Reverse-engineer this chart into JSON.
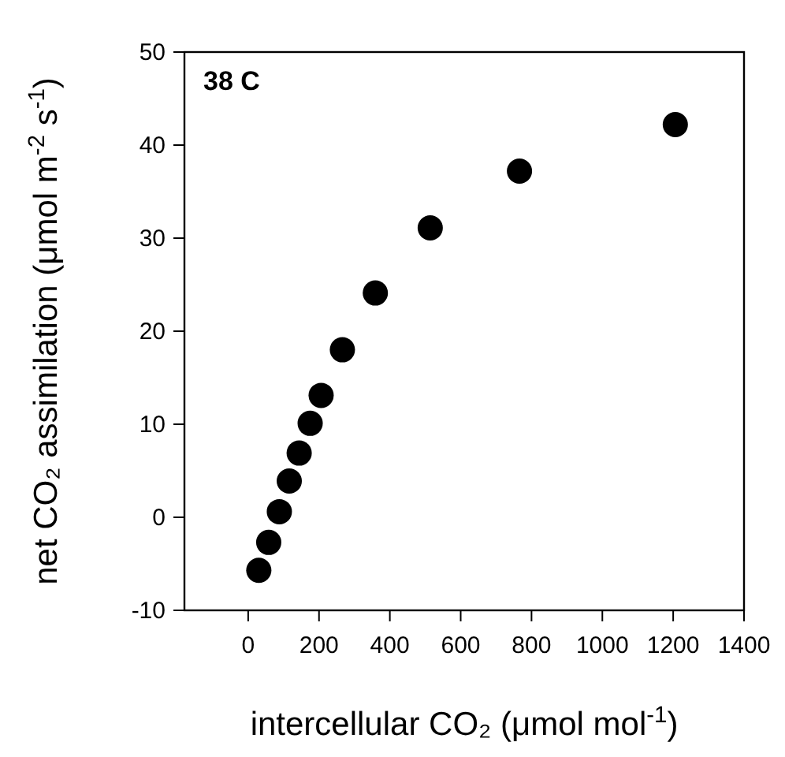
{
  "chart_data": {
    "type": "scatter",
    "xlabel": "intercellular CO₂ (μmol mol$^{-1}$)",
    "ylabel": "net CO₂ assimilation (μmol m$^{-2}$ s$^{-1}$)",
    "annotations": [
      "38 C"
    ],
    "x": [
      30,
      58,
      88,
      116,
      144,
      175,
      206,
      266,
      359,
      514,
      766,
      1206
    ],
    "series": [
      {
        "color": "#000000",
        "values": [
          -5.7,
          -2.7,
          0.6,
          3.9,
          6.9,
          10.1,
          13.1,
          18,
          24.1,
          31.1,
          37.2,
          42.2
        ]
      }
    ],
    "xlim": [
      -180,
      1400
    ],
    "xticks": [
      0,
      200,
      400,
      600,
      800,
      1000,
      1200,
      1400
    ],
    "ylim": [
      -10,
      50
    ],
    "yticks": [
      -10,
      0,
      10,
      20,
      30,
      40,
      50
    ],
    "grid": false,
    "marker": "circle"
  }
}
